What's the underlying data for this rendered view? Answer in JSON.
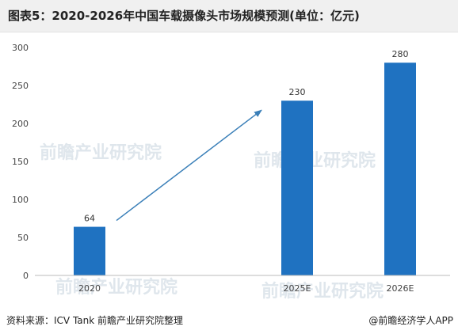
{
  "chart_data": {
    "type": "bar",
    "title": "图表5：2020-2026年中国车载摄像头市场规模预测(单位：亿元)",
    "categories": [
      "2020",
      "2025E",
      "2026E"
    ],
    "values": [
      64,
      230,
      280
    ],
    "data_labels": [
      "64",
      "230",
      "280"
    ],
    "yticks": [
      "0",
      "50",
      "100",
      "150",
      "200",
      "250",
      "300"
    ],
    "ylim": [
      0,
      300
    ],
    "bar_color": "#1f72c1",
    "arrow_color": "#3a7fb8",
    "grid": false
  },
  "footer": {
    "source": "资料来源：ICV Tank 前瞻产业研究院整理",
    "credit": "@前瞻经济学人APP"
  },
  "watermark": {
    "text": "前瞻产业研究院"
  }
}
